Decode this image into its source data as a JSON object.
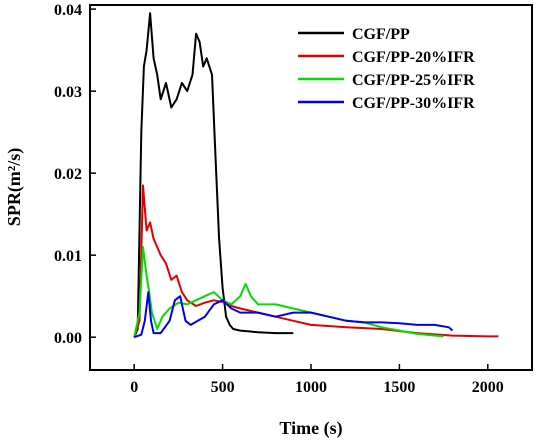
{
  "chart_data": {
    "type": "line",
    "xlabel": "Time (s)",
    "ylabel": "SPR(m²/s)",
    "xlim": [
      -250,
      2250
    ],
    "ylim": [
      -0.004,
      0.0405
    ],
    "x_ticks": [
      0,
      500,
      1000,
      1500,
      2000
    ],
    "x_tick_labels": [
      "0",
      "500",
      "1000",
      "1500",
      "2000"
    ],
    "y_ticks": [
      0.0,
      0.01,
      0.02,
      0.03,
      0.04
    ],
    "y_tick_labels": [
      "0.00",
      "0.01",
      "0.02",
      "0.03",
      "0.04"
    ],
    "grid": false,
    "legend_position": "top-right",
    "series": [
      {
        "name": "CGF/PP",
        "color": "#000000",
        "x": [
          0,
          20,
          40,
          55,
          70,
          90,
          110,
          130,
          150,
          180,
          210,
          240,
          270,
          300,
          330,
          350,
          370,
          390,
          410,
          440,
          460,
          480,
          500,
          520,
          540,
          560,
          600,
          650,
          700,
          800,
          900
        ],
        "y": [
          0.0,
          0.001,
          0.025,
          0.033,
          0.035,
          0.0395,
          0.034,
          0.032,
          0.029,
          0.031,
          0.028,
          0.029,
          0.031,
          0.03,
          0.032,
          0.037,
          0.036,
          0.033,
          0.034,
          0.032,
          0.022,
          0.012,
          0.006,
          0.0025,
          0.0015,
          0.001,
          0.0008,
          0.0007,
          0.0006,
          0.0005,
          0.0005
        ]
      },
      {
        "name": "CGF/PP-20%IFR",
        "color": "#e00000",
        "x": [
          0,
          30,
          50,
          70,
          90,
          110,
          130,
          150,
          180,
          210,
          240,
          270,
          300,
          350,
          400,
          450,
          500,
          550,
          600,
          700,
          800,
          900,
          1000,
          1200,
          1400,
          1600,
          1800,
          2000,
          2060
        ],
        "y": [
          0.0,
          0.002,
          0.0185,
          0.013,
          0.014,
          0.012,
          0.011,
          0.01,
          0.009,
          0.007,
          0.0075,
          0.0055,
          0.0045,
          0.0038,
          0.0042,
          0.0045,
          0.0043,
          0.0038,
          0.0035,
          0.003,
          0.0025,
          0.002,
          0.0015,
          0.0012,
          0.001,
          0.0005,
          0.0002,
          0.0001,
          0.0001
        ]
      },
      {
        "name": "CGF/PP-25%IFR",
        "color": "#00dd00",
        "x": [
          0,
          30,
          50,
          70,
          85,
          100,
          130,
          160,
          200,
          250,
          300,
          350,
          400,
          450,
          500,
          550,
          600,
          630,
          660,
          700,
          800,
          900,
          1000,
          1100,
          1200,
          1300,
          1400,
          1500,
          1600,
          1750
        ],
        "y": [
          0.0,
          0.003,
          0.011,
          0.0075,
          0.0055,
          0.003,
          0.001,
          0.0025,
          0.0035,
          0.0042,
          0.004,
          0.0045,
          0.005,
          0.0055,
          0.0045,
          0.004,
          0.005,
          0.0065,
          0.005,
          0.004,
          0.004,
          0.0035,
          0.003,
          0.0025,
          0.002,
          0.0018,
          0.0012,
          0.0008,
          0.0004,
          0.0001
        ]
      },
      {
        "name": "CGF/PP-30%IFR",
        "color": "#0000ee",
        "x": [
          0,
          40,
          60,
          80,
          95,
          110,
          150,
          200,
          230,
          260,
          290,
          320,
          360,
          400,
          450,
          500,
          550,
          600,
          700,
          800,
          900,
          1000,
          1100,
          1200,
          1300,
          1400,
          1500,
          1600,
          1700,
          1780,
          1800
        ],
        "y": [
          0.0,
          0.0003,
          0.002,
          0.0055,
          0.002,
          0.0005,
          0.0005,
          0.002,
          0.0045,
          0.005,
          0.002,
          0.0015,
          0.002,
          0.0025,
          0.004,
          0.0045,
          0.0035,
          0.003,
          0.003,
          0.0025,
          0.003,
          0.003,
          0.0025,
          0.002,
          0.0018,
          0.0018,
          0.0017,
          0.0015,
          0.0015,
          0.0012,
          0.0008
        ]
      }
    ]
  }
}
